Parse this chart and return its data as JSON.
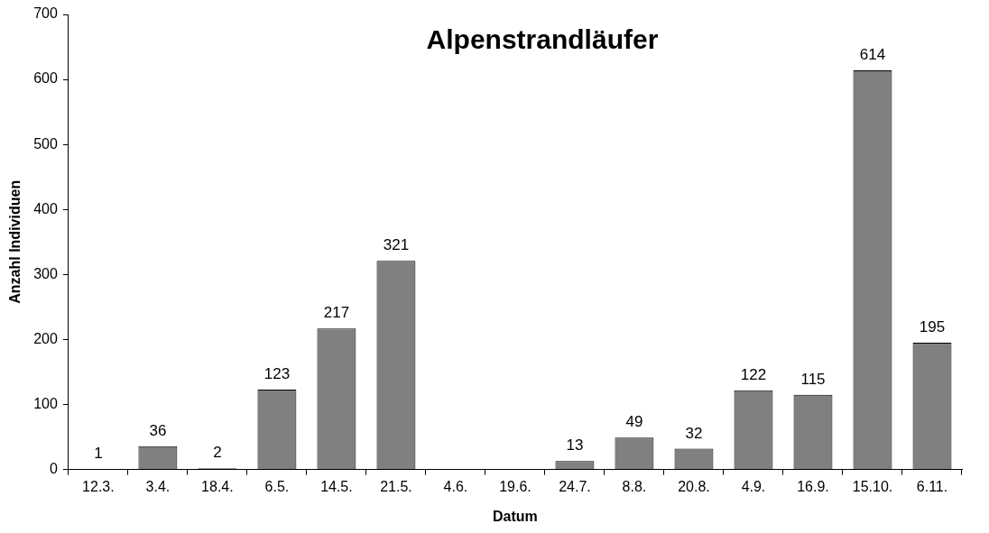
{
  "chart_data": {
    "type": "bar",
    "title": "Alpenstrandläufer",
    "xlabel": "Datum",
    "ylabel": "Anzahl Individuen",
    "categories": [
      "12.3.",
      "3.4.",
      "18.4.",
      "6.5.",
      "14.5.",
      "21.5.",
      "4.6.",
      "19.6.",
      "24.7.",
      "8.8.",
      "20.8.",
      "4.9.",
      "16.9.",
      "15.10.",
      "6.11."
    ],
    "values": [
      1,
      36,
      2,
      123,
      217,
      321,
      null,
      null,
      13,
      49,
      32,
      122,
      115,
      614,
      195
    ],
    "color": "#808080",
    "data_labels": true,
    "ylim": [
      0,
      700
    ],
    "yticks": [
      0,
      100,
      200,
      300,
      400,
      500,
      600,
      700
    ],
    "grid": false,
    "legend": false
  }
}
